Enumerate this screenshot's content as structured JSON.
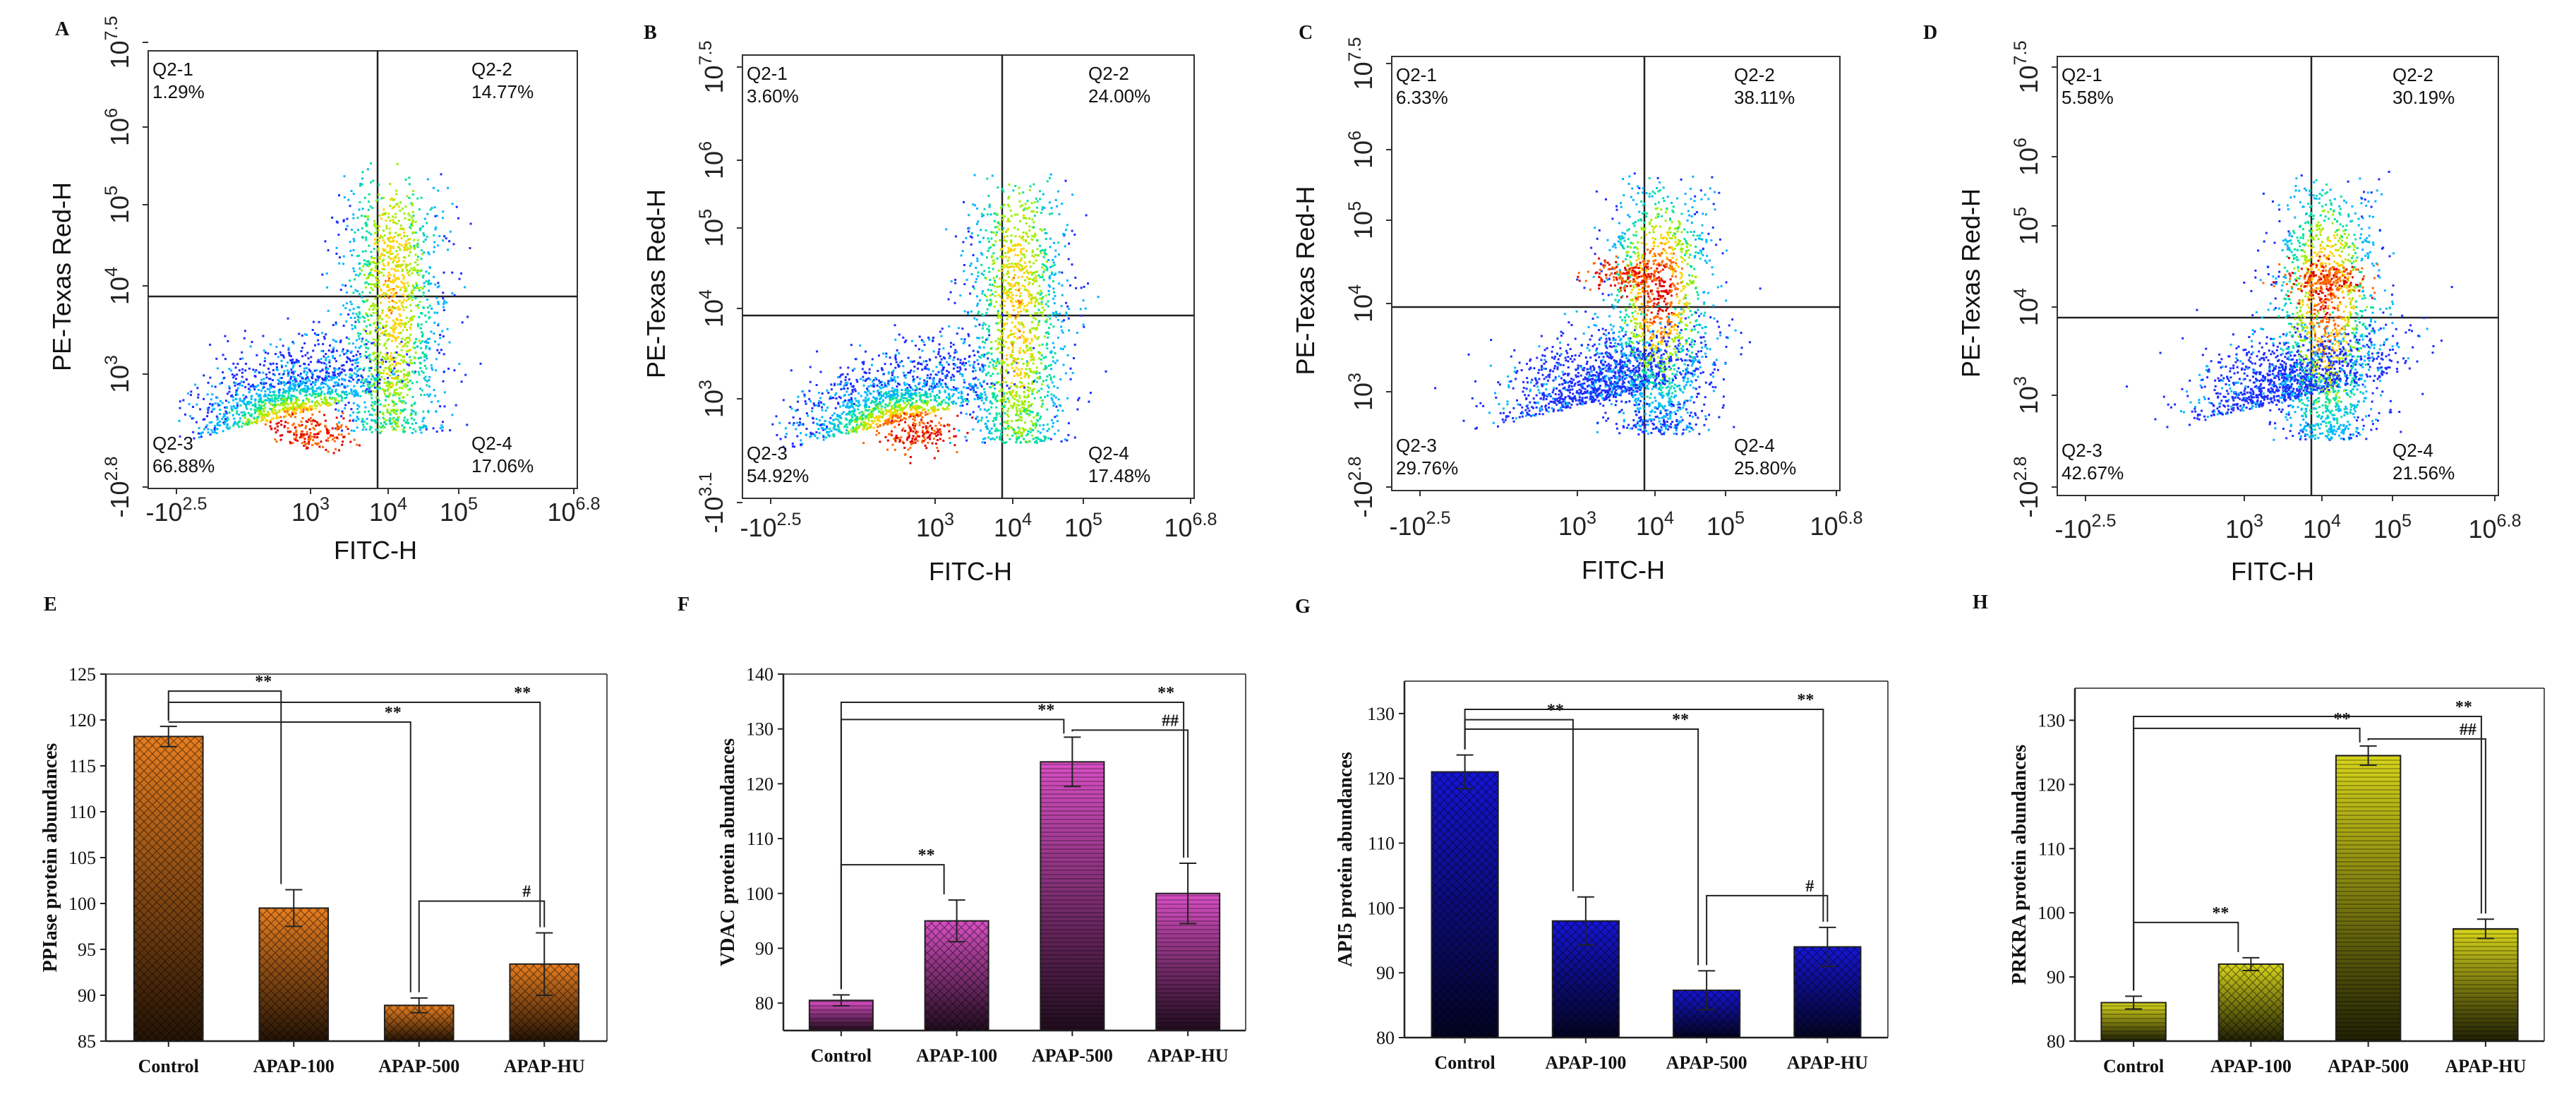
{
  "chart_data": [
    {
      "type": "scatter",
      "panel": "A",
      "xlabel": "FITC-H",
      "ylabel": "PE-Texas Red-H",
      "xticks": [
        "-10^2.5",
        "10^3",
        "10^4",
        "10^5",
        "10^6.8"
      ],
      "yticks": [
        "-10^2.8",
        "10^3",
        "10^4",
        "10^5",
        "10^6",
        "10^7.5"
      ],
      "quadrants": [
        {
          "name": "Q2-1",
          "value": "1.29%"
        },
        {
          "name": "Q2-2",
          "value": "14.77%"
        },
        {
          "name": "Q2-3",
          "value": "66.88%"
        },
        {
          "name": "Q2-4",
          "value": "17.06%"
        }
      ]
    },
    {
      "type": "scatter",
      "panel": "B",
      "xlabel": "FITC-H",
      "ylabel": "PE-Texas Red-H",
      "xticks": [
        "-10^2.5",
        "10^3",
        "10^4",
        "10^5",
        "10^6.8"
      ],
      "yticks": [
        "-10^3.1",
        "10^3",
        "10^4",
        "10^5",
        "10^6",
        "10^7.5"
      ],
      "quadrants": [
        {
          "name": "Q2-1",
          "value": "3.60%"
        },
        {
          "name": "Q2-2",
          "value": "24.00%"
        },
        {
          "name": "Q2-3",
          "value": "54.92%"
        },
        {
          "name": "Q2-4",
          "value": "17.48%"
        }
      ]
    },
    {
      "type": "scatter",
      "panel": "C",
      "xlabel": "FITC-H",
      "ylabel": "PE-Texas Red-H",
      "xticks": [
        "-10^2.5",
        "10^3",
        "10^4",
        "10^5",
        "10^6.8"
      ],
      "yticks": [
        "-10^2.8",
        "10^3",
        "10^4",
        "10^5",
        "10^6",
        "10^7.5"
      ],
      "quadrants": [
        {
          "name": "Q2-1",
          "value": "6.33%"
        },
        {
          "name": "Q2-2",
          "value": "38.11%"
        },
        {
          "name": "Q2-3",
          "value": "29.76%"
        },
        {
          "name": "Q2-4",
          "value": "25.80%"
        }
      ]
    },
    {
      "type": "scatter",
      "panel": "D",
      "xlabel": "FITC-H",
      "ylabel": "PE-Texas Red-H",
      "xticks": [
        "-10^2.5",
        "10^3",
        "10^4",
        "10^5",
        "10^6.8"
      ],
      "yticks": [
        "-10^2.8",
        "10^3",
        "10^4",
        "10^5",
        "10^6",
        "10^7.5"
      ],
      "quadrants": [
        {
          "name": "Q2-1",
          "value": "5.58%"
        },
        {
          "name": "Q2-2",
          "value": "30.19%"
        },
        {
          "name": "Q2-3",
          "value": "42.67%"
        },
        {
          "name": "Q2-4",
          "value": "21.56%"
        }
      ]
    },
    {
      "type": "bar",
      "panel": "E",
      "ylabel": "PPIase protein abundances",
      "categories": [
        "Control",
        "APAP-100",
        "APAP-500",
        "APAP-HU"
      ],
      "values": [
        118.2,
        99.5,
        88.9,
        93.4
      ],
      "errors": [
        1.1,
        2.0,
        0.8,
        3.4
      ],
      "ylim": [
        85,
        125
      ],
      "yticks": [
        85,
        90,
        95,
        100,
        105,
        110,
        115,
        120,
        125
      ],
      "color": "#e87e1f",
      "annotations": [
        {
          "from": "Control",
          "to": "APAP-100",
          "label": "**"
        },
        {
          "from": "Control",
          "to": "APAP-500",
          "label": "**"
        },
        {
          "from": "Control",
          "to": "APAP-HU",
          "label": "**"
        },
        {
          "from": "APAP-500",
          "to": "APAP-HU",
          "label": "#"
        }
      ]
    },
    {
      "type": "bar",
      "panel": "F",
      "ylabel": "VDAC protein abundances",
      "categories": [
        "Control",
        "APAP-100",
        "APAP-500",
        "APAP-HU"
      ],
      "values": [
        80.5,
        95.0,
        124.0,
        100.0
      ],
      "errors": [
        1.0,
        3.8,
        4.5,
        5.5
      ],
      "ylim": [
        75,
        140
      ],
      "yticks": [
        80,
        90,
        100,
        110,
        120,
        130,
        140
      ],
      "color": "#d84fc4",
      "annotations": [
        {
          "from": "Control",
          "to": "APAP-100",
          "label": "**"
        },
        {
          "from": "Control",
          "to": "APAP-500",
          "label": "**"
        },
        {
          "from": "Control",
          "to": "APAP-HU",
          "label": "**"
        },
        {
          "from": "APAP-500",
          "to": "APAP-HU",
          "label": "##"
        }
      ]
    },
    {
      "type": "bar",
      "panel": "G",
      "ylabel": "API5 protein abundances",
      "categories": [
        "Control",
        "APAP-100",
        "APAP-500",
        "APAP-HU"
      ],
      "values": [
        121.0,
        98.0,
        87.3,
        94.0
      ],
      "errors": [
        2.6,
        3.7,
        3.0,
        3.0
      ],
      "ylim": [
        80,
        135
      ],
      "yticks": [
        80,
        90,
        100,
        110,
        120,
        130
      ],
      "color": "#1515d6",
      "annotations": [
        {
          "from": "Control",
          "to": "APAP-100",
          "label": "**"
        },
        {
          "from": "Control",
          "to": "APAP-500",
          "label": "**"
        },
        {
          "from": "Control",
          "to": "APAP-HU",
          "label": "**"
        },
        {
          "from": "APAP-500",
          "to": "APAP-HU",
          "label": "#"
        }
      ]
    },
    {
      "type": "bar",
      "panel": "H",
      "ylabel": "PRKRA  protein abundances",
      "categories": [
        "Control",
        "APAP-100",
        "APAP-500",
        "APAP-HU"
      ],
      "values": [
        86.0,
        92.0,
        124.5,
        97.5
      ],
      "errors": [
        1.0,
        1.0,
        1.5,
        1.5
      ],
      "ylim": [
        80,
        135
      ],
      "yticks": [
        80,
        90,
        100,
        110,
        120,
        130
      ],
      "color": "#d6d41a",
      "annotations": [
        {
          "from": "Control",
          "to": "APAP-100",
          "label": "**"
        },
        {
          "from": "Control",
          "to": "APAP-500",
          "label": "**"
        },
        {
          "from": "Control",
          "to": "APAP-HU",
          "label": "**"
        },
        {
          "from": "APAP-500",
          "to": "APAP-HU",
          "label": "##"
        }
      ]
    }
  ]
}
